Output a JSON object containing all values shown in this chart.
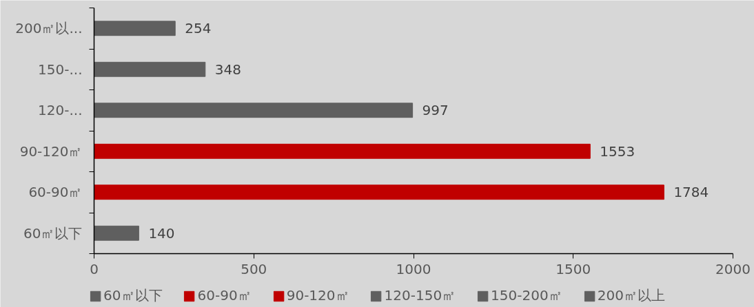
{
  "chart_data": {
    "type": "bar",
    "orientation": "horizontal",
    "categories": [
      "200㎡以...",
      "150-...",
      "120-...",
      "90-120㎡",
      "60-90㎡",
      "60㎡以下"
    ],
    "series": [
      {
        "name": "60㎡以下",
        "color": "#5f5f5f",
        "values": [
          null,
          null,
          null,
          null,
          null,
          140
        ]
      },
      {
        "name": "60-90㎡",
        "color": "#c00000",
        "values": [
          null,
          null,
          null,
          null,
          1784,
          null
        ]
      },
      {
        "name": "90-120㎡",
        "color": "#c00000",
        "values": [
          null,
          null,
          null,
          1553,
          null,
          null
        ]
      },
      {
        "name": "120-150㎡",
        "color": "#5f5f5f",
        "values": [
          null,
          null,
          997,
          null,
          null,
          null
        ]
      },
      {
        "name": "150-200㎡",
        "color": "#5f5f5f",
        "values": [
          null,
          348,
          null,
          null,
          null,
          null
        ]
      },
      {
        "name": "200㎡以上",
        "color": "#5f5f5f",
        "values": [
          254,
          null,
          null,
          null,
          null,
          null
        ]
      }
    ],
    "xlim": [
      0,
      2000
    ],
    "xticks": [
      0,
      500,
      1000,
      1500,
      2000
    ],
    "data_labels": true,
    "legend": "bottom",
    "grid": false
  }
}
